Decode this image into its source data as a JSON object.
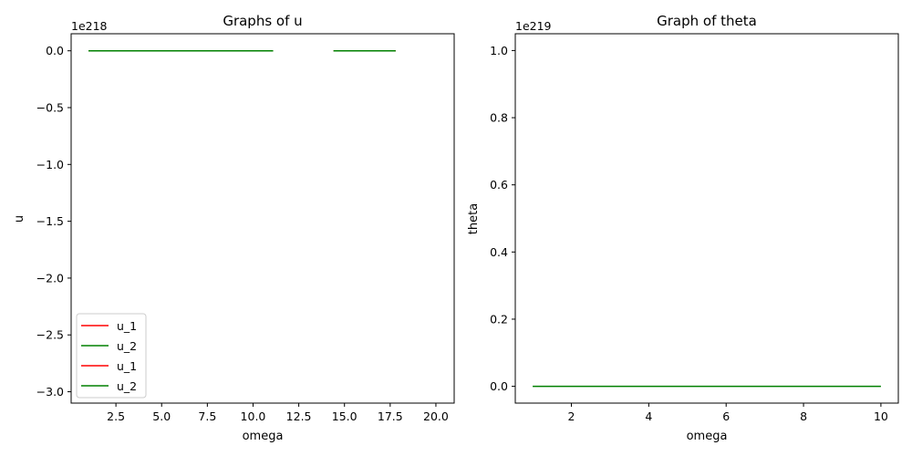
{
  "chart_data": [
    {
      "type": "line",
      "title": "Graphs of u",
      "xlabel": "omega",
      "ylabel": "u",
      "offset_text": "1e218",
      "xlim": [
        0.05,
        21.0
      ],
      "ylim": [
        -3.1,
        0.15
      ],
      "xticks": [
        2.5,
        5.0,
        7.5,
        10.0,
        12.5,
        15.0,
        17.5,
        20.0
      ],
      "xtick_labels": [
        "2.5",
        "5.0",
        "7.5",
        "10.0",
        "12.5",
        "15.0",
        "17.5",
        "20.0"
      ],
      "yticks": [
        0.0,
        -0.5,
        -1.0,
        -1.5,
        -2.0,
        -2.5,
        -3.0
      ],
      "ytick_labels": [
        "0.0",
        "−0.5",
        "−1.0",
        "−1.5",
        "−2.0",
        "−2.5",
        "−3.0"
      ],
      "legend_position": "lower-left",
      "series": [
        {
          "name": "u_1",
          "color": "#ff0000",
          "x": [
            1.0,
            11.1
          ],
          "y": [
            0.0,
            0.0
          ]
        },
        {
          "name": "u_2",
          "color": "#008000",
          "x": [
            1.0,
            11.1
          ],
          "y": [
            0.0,
            0.0
          ]
        },
        {
          "name": "u_1",
          "color": "#ff0000",
          "x": [
            14.4,
            17.8
          ],
          "y": [
            0.0,
            0.0
          ]
        },
        {
          "name": "u_2",
          "color": "#008000",
          "x": [
            14.4,
            17.8
          ],
          "y": [
            0.0,
            0.0
          ]
        }
      ]
    },
    {
      "type": "line",
      "title": "Graph of theta",
      "xlabel": "omega",
      "ylabel": "theta",
      "offset_text": "1e219",
      "xlim": [
        0.55,
        10.45
      ],
      "ylim": [
        -0.05,
        1.05
      ],
      "xticks": [
        2,
        4,
        6,
        8,
        10
      ],
      "xtick_labels": [
        "2",
        "4",
        "6",
        "8",
        "10"
      ],
      "yticks": [
        0.0,
        0.2,
        0.4,
        0.6,
        0.8,
        1.0
      ],
      "ytick_labels": [
        "0.0",
        "0.2",
        "0.4",
        "0.6",
        "0.8",
        "1.0"
      ],
      "series": [
        {
          "color": "#008000",
          "x": [
            1.0,
            10.0
          ],
          "y": [
            0.0,
            0.0
          ]
        }
      ]
    }
  ]
}
